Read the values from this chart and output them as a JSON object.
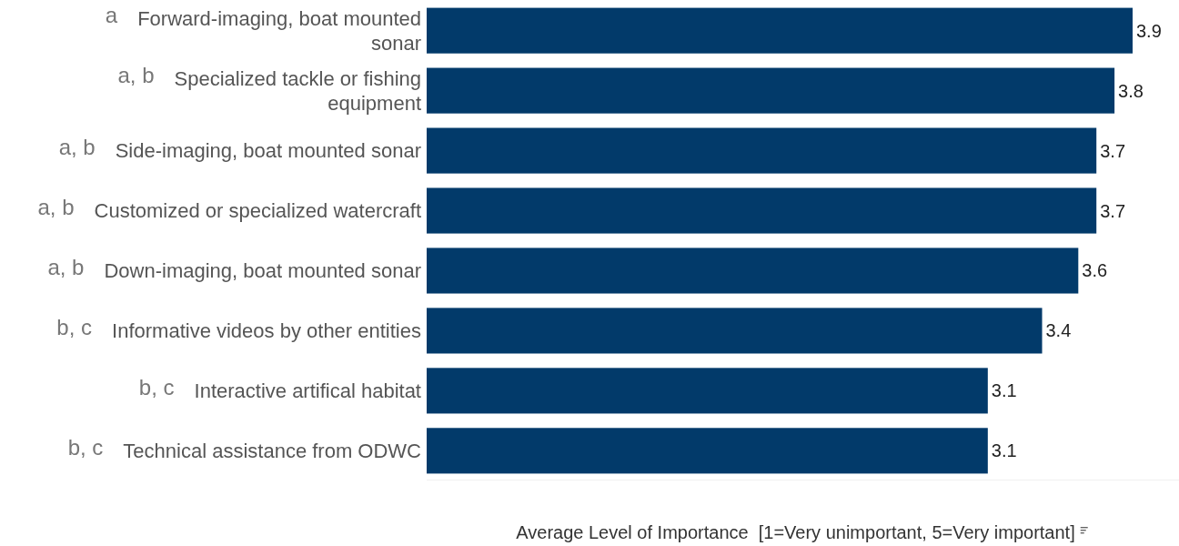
{
  "chart_data": {
    "type": "bar",
    "orientation": "horizontal",
    "categories": [
      "Forward-imaging, boat mounted sonar",
      "Specialized tackle or fishing equipment",
      "Side-imaging, boat mounted sonar",
      "Customized or specialized watercraft",
      "Down-imaging, boat mounted sonar",
      "Informative videos by other entities",
      "Interactive artifical habitat",
      "Technical assistance from ODWC"
    ],
    "values": [
      3.9,
      3.8,
      3.7,
      3.7,
      3.6,
      3.4,
      3.1,
      3.1
    ],
    "color": "#023a6a",
    "data_labels": true,
    "xlabel": "Average Level of Importance  [1=Very unimportant, 5=Very important]",
    "annotations": [
      "a",
      "a, b",
      "a, b",
      "a, b",
      "a, b",
      "b, c",
      "b, c",
      "b, c"
    ]
  }
}
